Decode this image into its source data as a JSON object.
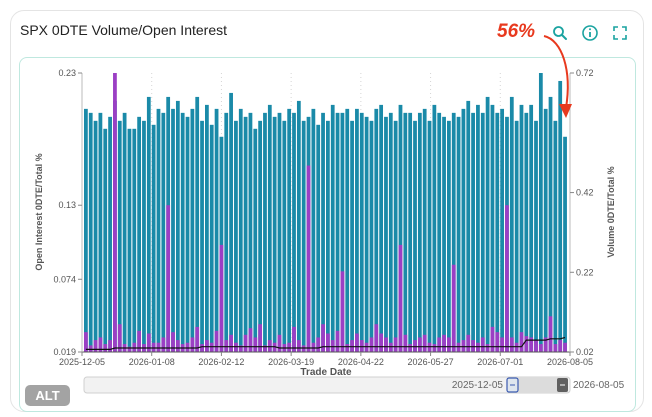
{
  "card": {
    "title": "SPX 0DTE Volume/Open Interest"
  },
  "toolbar": {
    "search_icon": "search-icon",
    "info_icon": "info-icon",
    "expand_icon": "expand-icon"
  },
  "annotation": {
    "text": "56%",
    "color": "#e8391e"
  },
  "alt_label": "ALT",
  "slider": {
    "start_label": "2025-12-05",
    "end_label": "2026-08-05"
  },
  "colors": {
    "volume_bar": "#1a8aa8",
    "oi_bar": "#9b3fc4",
    "line": "#111111",
    "accent": "#e8391e"
  },
  "chart_data": {
    "type": "bar",
    "xlabel": "Trade Date",
    "y_left_label": "Open Interest 0DTE/Total %",
    "y_right_label": "Volume 0DTE/Total %",
    "x_ticks": [
      "2025-12-05",
      "2026-01-08",
      "2026-02-12",
      "2026-03-19",
      "2026-04-22",
      "2026-05-27",
      "2026-07-01",
      "2026-08-05"
    ],
    "y_left_ticks": [
      "0.019",
      "0.074",
      "0.13",
      "0.23"
    ],
    "y_right_ticks": [
      "0.02",
      "0.22",
      "0.42",
      "0.72"
    ],
    "y_left_range": [
      0.019,
      0.23
    ],
    "y_right_range": [
      0.02,
      0.72
    ],
    "series": [
      {
        "name": "Volume 0DTE/Total %",
        "axis": "right",
        "values": [
          0.63,
          0.62,
          0.6,
          0.62,
          0.58,
          0.61,
          0.65,
          0.6,
          0.62,
          0.58,
          0.58,
          0.61,
          0.6,
          0.66,
          0.59,
          0.63,
          0.62,
          0.66,
          0.63,
          0.65,
          0.62,
          0.61,
          0.63,
          0.66,
          0.6,
          0.64,
          0.59,
          0.63,
          0.56,
          0.62,
          0.67,
          0.6,
          0.63,
          0.61,
          0.62,
          0.58,
          0.6,
          0.62,
          0.64,
          0.61,
          0.62,
          0.6,
          0.63,
          0.62,
          0.65,
          0.6,
          0.61,
          0.63,
          0.59,
          0.62,
          0.6,
          0.64,
          0.62,
          0.62,
          0.63,
          0.6,
          0.63,
          0.62,
          0.61,
          0.6,
          0.63,
          0.64,
          0.61,
          0.62,
          0.6,
          0.64,
          0.62,
          0.62,
          0.6,
          0.62,
          0.63,
          0.6,
          0.64,
          0.62,
          0.61,
          0.6,
          0.62,
          0.61,
          0.63,
          0.65,
          0.62,
          0.64,
          0.62,
          0.66,
          0.64,
          0.62,
          0.63,
          0.61,
          0.66,
          0.6,
          0.64,
          0.62,
          0.64,
          0.6,
          0.72,
          0.63,
          0.66,
          0.6,
          0.7,
          0.56
        ]
      },
      {
        "name": "Open Interest 0DTE/Total %",
        "axis": "left",
        "values": [
          0.034,
          0.024,
          0.028,
          0.03,
          0.025,
          0.028,
          0.23,
          0.04,
          0.025,
          0.023,
          0.026,
          0.035,
          0.025,
          0.033,
          0.026,
          0.026,
          0.03,
          0.13,
          0.034,
          0.028,
          0.025,
          0.026,
          0.03,
          0.038,
          0.025,
          0.028,
          0.026,
          0.035,
          0.1,
          0.028,
          0.032,
          0.026,
          0.024,
          0.032,
          0.037,
          0.03,
          0.04,
          0.024,
          0.028,
          0.026,
          0.032,
          0.025,
          0.026,
          0.038,
          0.028,
          0.024,
          0.16,
          0.026,
          0.03,
          0.04,
          0.033,
          0.028,
          0.035,
          0.08,
          0.025,
          0.028,
          0.033,
          0.028,
          0.026,
          0.03,
          0.04,
          0.033,
          0.03,
          0.026,
          0.03,
          0.1,
          0.032,
          0.025,
          0.028,
          0.03,
          0.032,
          0.026,
          0.025,
          0.03,
          0.032,
          0.03,
          0.085,
          0.026,
          0.028,
          0.032,
          0.028,
          0.026,
          0.03,
          0.025,
          0.038,
          0.034,
          0.03,
          0.13,
          0.03,
          0.026,
          0.034,
          0.031,
          0.03,
          0.028,
          0.025,
          0.03,
          0.046,
          0.025,
          0.028,
          0.026
        ]
      }
    ],
    "line_series": {
      "name": "Open Interest 0DTE/Total % (line)",
      "axis": "left",
      "values": [
        0.021,
        0.021,
        0.021,
        0.021,
        0.021,
        0.021,
        0.022,
        0.022,
        0.022,
        0.022,
        0.022,
        0.022,
        0.022,
        0.022,
        0.022,
        0.022,
        0.022,
        0.022,
        0.022,
        0.022,
        0.022,
        0.022,
        0.022,
        0.022,
        0.023,
        0.023,
        0.023,
        0.023,
        0.023,
        0.023,
        0.023,
        0.023,
        0.023,
        0.023,
        0.023,
        0.023,
        0.023,
        0.023,
        0.023,
        0.023,
        0.022,
        0.022,
        0.022,
        0.022,
        0.022,
        0.022,
        0.022,
        0.022,
        0.022,
        0.023,
        0.023,
        0.023,
        0.023,
        0.023,
        0.023,
        0.023,
        0.023,
        0.023,
        0.023,
        0.023,
        0.023,
        0.023,
        0.023,
        0.023,
        0.023,
        0.023,
        0.023,
        0.023,
        0.023,
        0.023,
        0.023,
        0.023,
        0.023,
        0.023,
        0.023,
        0.023,
        0.023,
        0.023,
        0.023,
        0.023,
        0.023,
        0.023,
        0.023,
        0.023,
        0.023,
        0.023,
        0.023,
        0.023,
        0.023,
        0.023,
        0.023,
        0.028,
        0.028,
        0.028,
        0.028,
        0.028,
        0.029,
        0.029,
        0.029,
        0.03
      ]
    },
    "grid": true
  }
}
